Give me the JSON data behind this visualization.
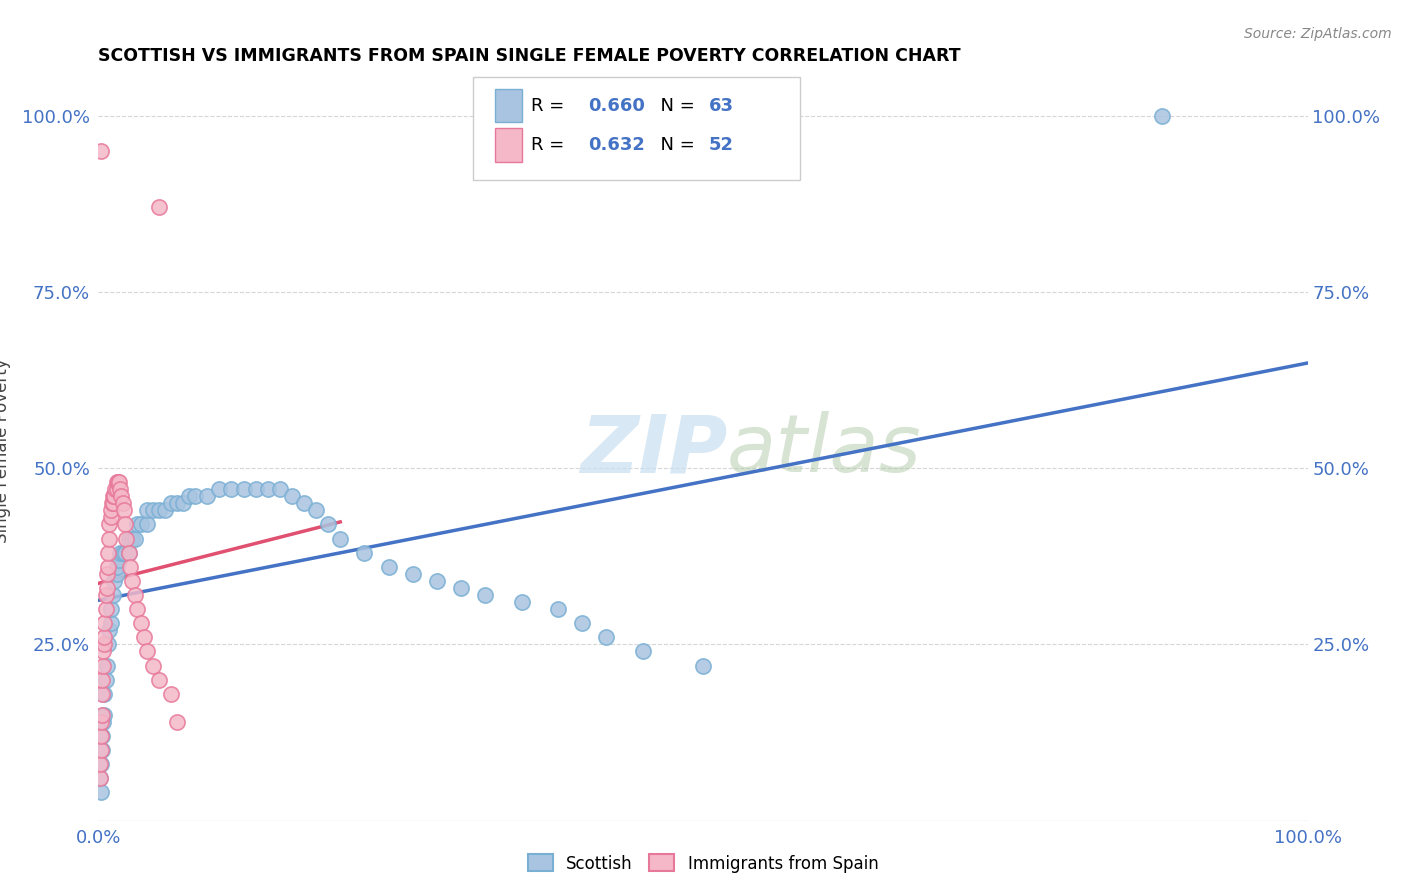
{
  "title": "SCOTTISH VS IMMIGRANTS FROM SPAIN SINGLE FEMALE POVERTY CORRELATION CHART",
  "source": "Source: ZipAtlas.com",
  "ylabel": "Single Female Poverty",
  "scottish_R": 0.66,
  "scottish_N": 63,
  "spain_R": 0.632,
  "spain_N": 52,
  "scottish_color": "#a8c4e0",
  "scottish_edge_color": "#7aafd4",
  "spain_color": "#f4b8c8",
  "spain_edge_color": "#e8789a",
  "scottish_line_color": "#4472c4",
  "spain_line_color": "#e05070",
  "watermark_color": "#d8e8f0",
  "tick_color": "#4472c4",
  "background_color": "#ffffff",
  "legend_edge_color": "#cccccc"
}
